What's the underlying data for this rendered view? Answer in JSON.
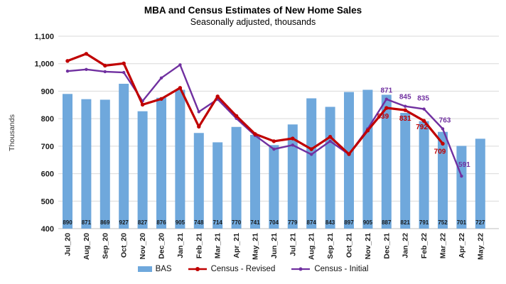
{
  "chart_data": {
    "type": "combo bar+line",
    "title": "MBA and Census Estimates of New Home Sales",
    "subtitle": "Seasonally adjusted, thousands",
    "xlabel": "",
    "ylabel": "Thousands",
    "ylim": [
      400,
      1100
    ],
    "y_tick_labels": [
      "1,100",
      "1,000",
      "900",
      "800",
      "700",
      "600",
      "500",
      "400"
    ],
    "grid": true,
    "legend_position": "bottom",
    "categories": [
      "Jul_20",
      "Aug_20",
      "Sep_20",
      "Oct_20",
      "Nov_20",
      "Dec_20",
      "Jan_21",
      "Feb_21",
      "Mar_21",
      "Apr_21",
      "May_21",
      "Jun_21",
      "Jul_21",
      "Aug_21",
      "Sep_21",
      "Oct_21",
      "Nov_21",
      "Dec_21",
      "Jan_22",
      "Feb_22",
      "Mar_22",
      "Apr_22",
      "May_22"
    ],
    "series": [
      {
        "name": "BAS",
        "type": "bar",
        "color": "#6FA8DC",
        "values": [
          890,
          871,
          869,
          927,
          827,
          876,
          905,
          748,
          714,
          770,
          741,
          704,
          779,
          874,
          843,
          897,
          905,
          887,
          821,
          791,
          752,
          701,
          727
        ],
        "value_labels_shown": true,
        "value_label_color": "#1a1a1a"
      },
      {
        "name": "Census - Revised",
        "type": "line",
        "color": "#C00000",
        "values": [
          1010,
          1036,
          993,
          1001,
          851,
          872,
          912,
          771,
          881,
          810,
          744,
          718,
          728,
          689,
          734,
          671,
          757,
          839,
          831,
          792,
          709,
          null,
          null
        ],
        "point_labels": {
          "17": "839",
          "18": "831",
          "19": "792",
          "20": "709"
        }
      },
      {
        "name": "Census - Initial",
        "type": "line",
        "color": "#7030A0",
        "values": [
          973,
          979,
          971,
          968,
          864,
          948,
          996,
          825,
          871,
          801,
          739,
          689,
          704,
          670,
          718,
          670,
          763,
          871,
          845,
          835,
          763,
          591,
          null
        ],
        "point_labels": {
          "17": "871",
          "18": "845",
          "19": "835",
          "20": "763",
          "21": "591"
        }
      }
    ]
  }
}
